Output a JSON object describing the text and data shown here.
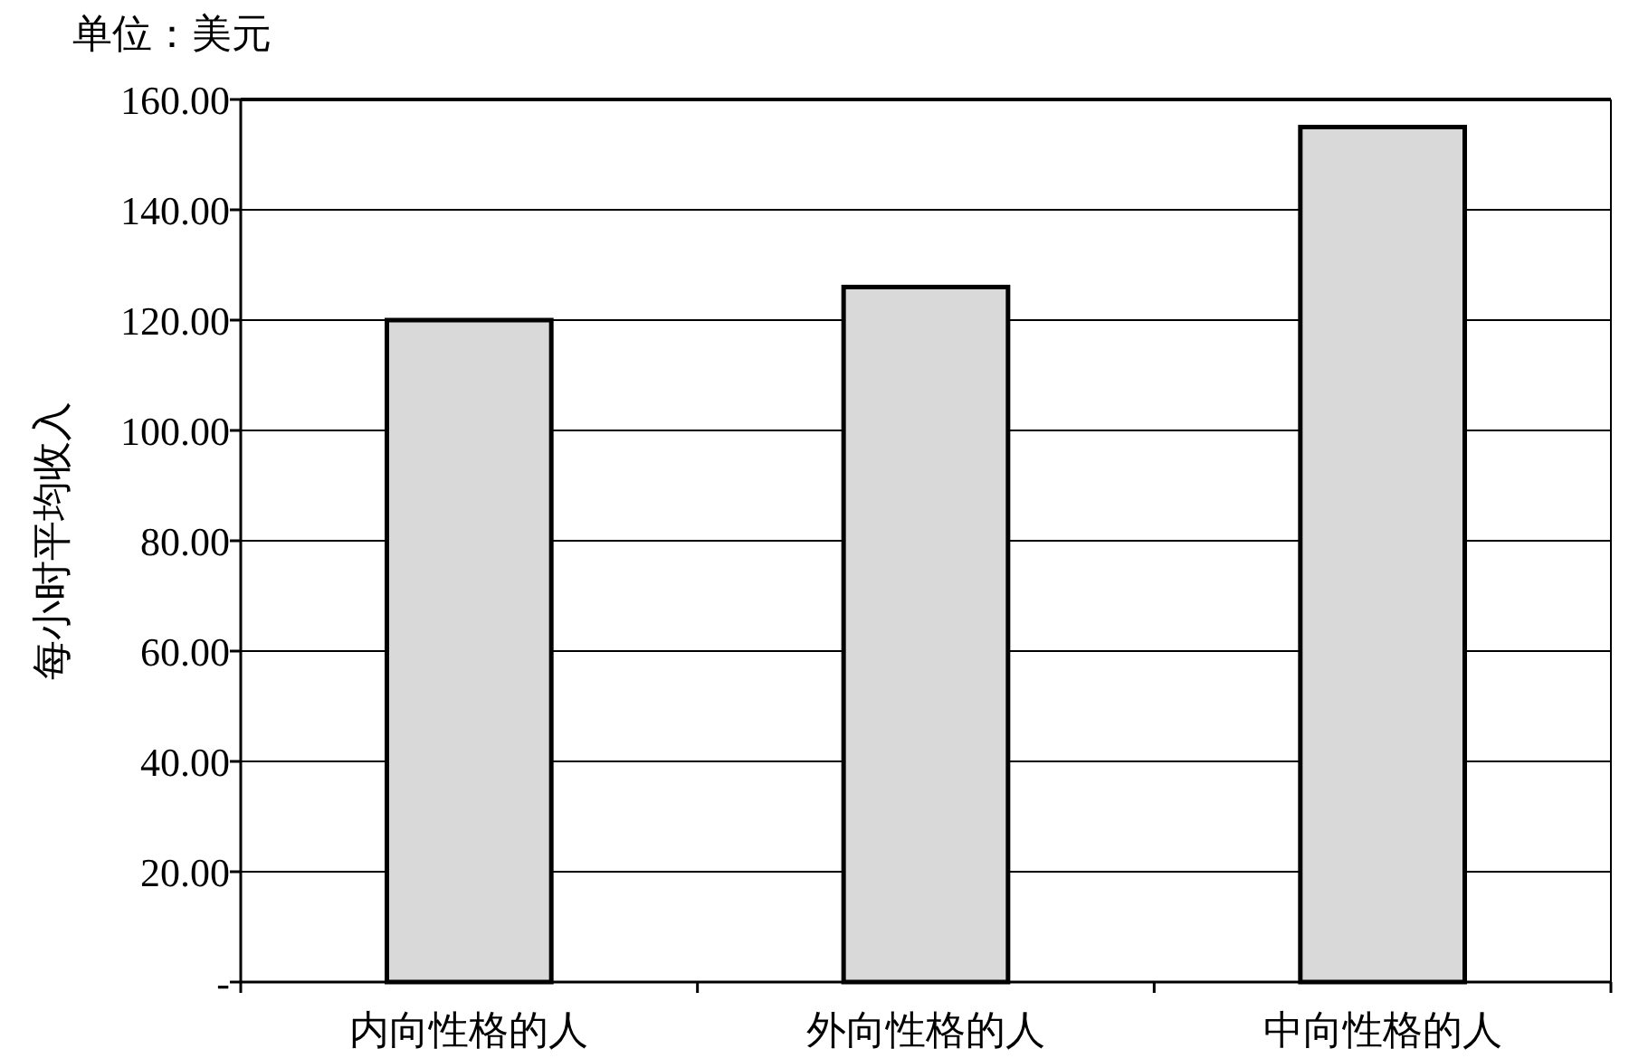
{
  "chart_data": {
    "type": "bar",
    "ylabel": "每小时平均收入",
    "annotations": [
      "单位：美元"
    ],
    "categories": [
      "内向性格的人",
      "外向性格的人",
      "中向性格的人"
    ],
    "values": [
      120,
      126,
      155
    ],
    "color": "#d9d9d9",
    "ylim": [
      0,
      160
    ],
    "yticks": [
      {
        "value": 0,
        "label": "-"
      },
      {
        "value": 20,
        "label": "20.00"
      },
      {
        "value": 40,
        "label": "40.00"
      },
      {
        "value": 60,
        "label": "60.00"
      },
      {
        "value": 80,
        "label": "80.00"
      },
      {
        "value": 100,
        "label": "100.00"
      },
      {
        "value": 120,
        "label": "120.00"
      },
      {
        "value": 140,
        "label": "140.00"
      },
      {
        "value": 160,
        "label": "160.00"
      }
    ],
    "grid": "y"
  }
}
